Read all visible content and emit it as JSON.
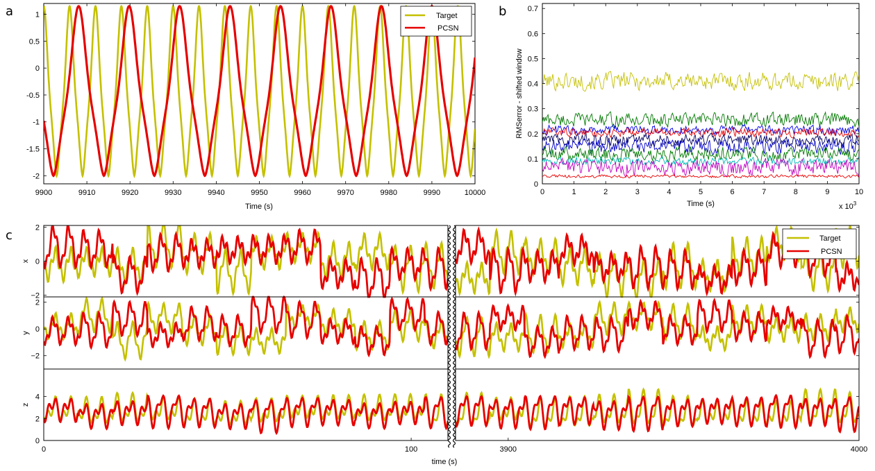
{
  "panel_labels": {
    "a": "a",
    "b": "b",
    "c": "c"
  },
  "colors": {
    "target": "#c4c000",
    "pcsn": "#e60000"
  },
  "chart_data": [
    {
      "id": "a",
      "type": "line",
      "xlabel": "Time (s)",
      "ylabel": "",
      "xlim": [
        9900,
        10000
      ],
      "ylim": [
        -2.15,
        1.2
      ],
      "xticks": [
        "9900",
        "9910",
        "9920",
        "9930",
        "9940",
        "9950",
        "9960",
        "9970",
        "9980",
        "9990",
        "10000"
      ],
      "yticks": [
        "1",
        "0.5",
        "0",
        "-0.5",
        "-1",
        "-1.5",
        "-2"
      ],
      "legend": {
        "position": "top-right",
        "entries": [
          "Target",
          "PCSN"
        ]
      },
      "series": [
        {
          "name": "Target",
          "color": "#c4c000",
          "period": 6.0,
          "phase": 0.0,
          "x_start": 9900,
          "x_end": 10000
        },
        {
          "name": "PCSN",
          "color": "#e60000",
          "period": 11.7,
          "phase": 9.9,
          "x_start": 9900,
          "x_end": 10000
        }
      ]
    },
    {
      "id": "b",
      "type": "line",
      "xlabel": "Time (s)",
      "ylabel": "RMSerror   - shifted window",
      "x_multiplier": "x 10",
      "x_multiplier_exp": "3",
      "xlim": [
        0,
        10
      ],
      "ylim": [
        0,
        0.72
      ],
      "xticks": [
        "0",
        "1",
        "2",
        "3",
        "4",
        "5",
        "6",
        "7",
        "8",
        "9",
        "10"
      ],
      "yticks": [
        "0.7",
        "0.6",
        "0.5",
        "0.4",
        "0.3",
        "0.2",
        "0.1",
        "0"
      ],
      "series": [
        {
          "color": "#c4c000",
          "mean": 0.41,
          "noise": 0.045
        },
        {
          "color": "#007a00",
          "mean": 0.255,
          "noise": 0.035
        },
        {
          "color": "#0000e6",
          "mean": 0.215,
          "noise": 0.025
        },
        {
          "color": "#e60000",
          "mean": 0.205,
          "noise": 0.022
        },
        {
          "color": "#000060",
          "mean": 0.175,
          "noise": 0.03
        },
        {
          "color": "#0000c8",
          "mean": 0.15,
          "noise": 0.035
        },
        {
          "color": "#007a00",
          "mean": 0.12,
          "noise": 0.035
        },
        {
          "color": "#00b8b8",
          "mean": 0.09,
          "noise": 0.02
        },
        {
          "color": "#c000c0",
          "mean": 0.065,
          "noise": 0.04
        },
        {
          "color": "#e60000",
          "mean": 0.03,
          "noise": 0.008
        }
      ]
    },
    {
      "id": "c",
      "type": "line",
      "xlabel": "time (s)",
      "segments": [
        {
          "xlim": [
            0,
            110
          ],
          "xticks": [
            "0",
            "100"
          ],
          "tick_values": [
            0,
            100
          ]
        },
        {
          "xlim": [
            3885,
            4000
          ],
          "xticks": [
            "3900",
            "4000"
          ],
          "tick_values": [
            3900,
            4000
          ]
        }
      ],
      "legend": {
        "position": "top-right",
        "entries": [
          "Target",
          "PCSN"
        ]
      },
      "subplots": [
        {
          "ylabel": "x",
          "ylim": [
            -2.1,
            2.1
          ],
          "yticks": [
            "2",
            "0",
            "−2"
          ],
          "tick_values": [
            2,
            0,
            -2
          ]
        },
        {
          "ylabel": "y",
          "ylim": [
            -3,
            2.4
          ],
          "yticks": [
            "2",
            "0",
            "−2"
          ],
          "tick_values": [
            2,
            0,
            -2
          ]
        },
        {
          "ylabel": "z",
          "ylim": [
            0,
            6.5
          ],
          "yticks": [
            "4",
            "2",
            "0"
          ],
          "tick_values": [
            4,
            2,
            0
          ]
        }
      ]
    }
  ]
}
